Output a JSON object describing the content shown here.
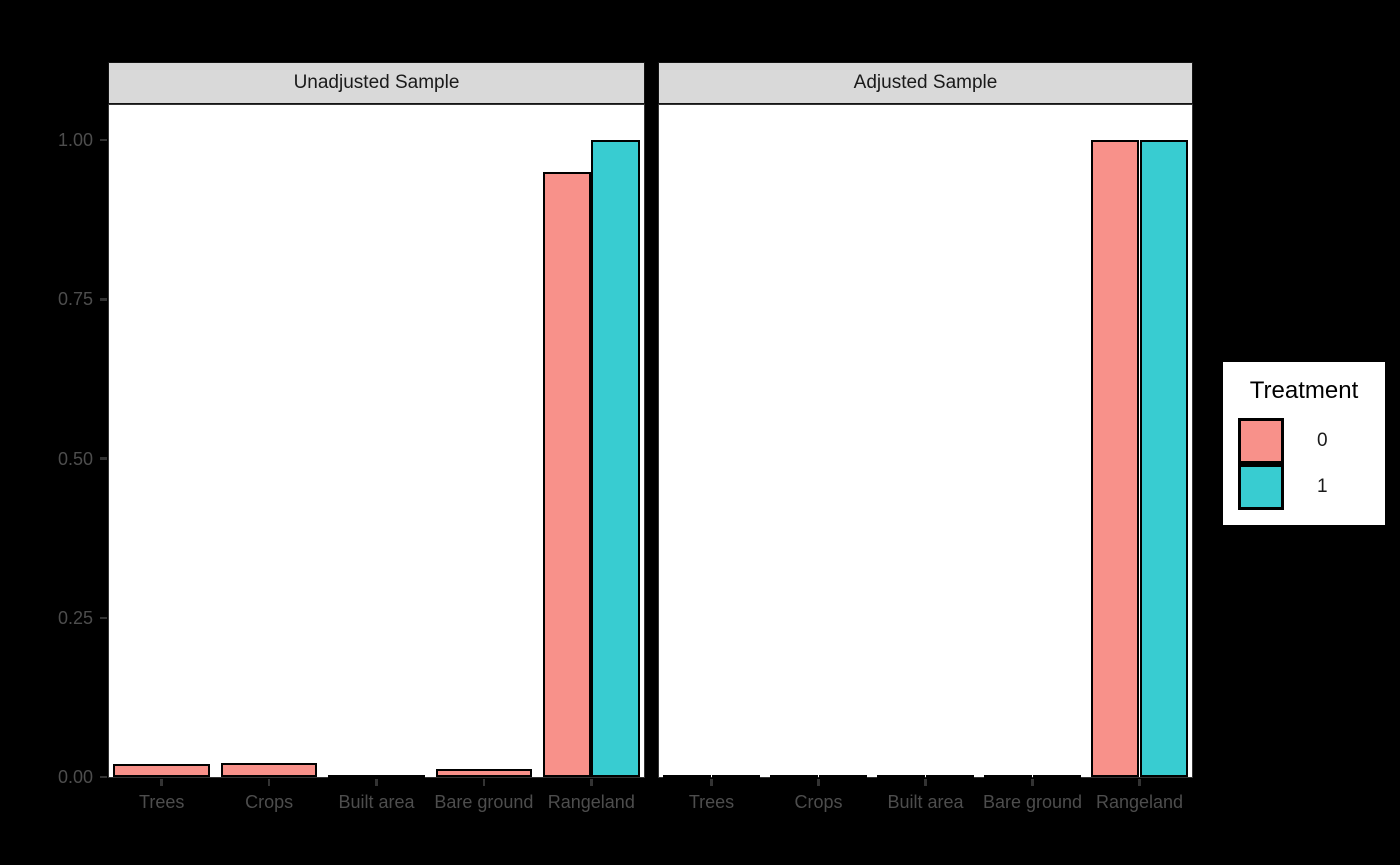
{
  "chart_data": {
    "type": "bar",
    "title": "",
    "xlabel": "",
    "ylabel": "",
    "ylim": [
      0,
      1
    ],
    "grid": false,
    "categories": [
      "Trees",
      "Crops",
      "Built area",
      "Bare ground",
      "Rangeland"
    ],
    "y_ticks": [
      "1.00",
      "0.75",
      "0.50",
      "0.25",
      "0.00"
    ],
    "facets": [
      {
        "label": "Unadjusted Sample",
        "series": [
          {
            "name": "0",
            "values": [
              0.02,
              0.022,
              0.002,
              0.012,
              0.95
            ]
          },
          {
            "name": "1",
            "values": [
              null,
              null,
              null,
              null,
              1.0
            ]
          }
        ]
      },
      {
        "label": "Adjusted Sample",
        "series": [
          {
            "name": "0",
            "values": [
              0.002,
              0.002,
              0.002,
              0.002,
              1.0
            ]
          },
          {
            "name": "1",
            "values": [
              0.002,
              0.002,
              0.002,
              0.002,
              1.0
            ]
          }
        ]
      }
    ],
    "legend": {
      "title": "Treatment",
      "position": "right",
      "entries": [
        {
          "label": "0",
          "color": "#F8918A"
        },
        {
          "label": "1",
          "color": "#38CCD1"
        }
      ]
    },
    "colors": {
      "treatment_0": "#F8918A",
      "treatment_1": "#38CCD1",
      "panel_background": "#ffffff",
      "strip_background": "#d9d9d9",
      "figure_background": "#000000",
      "axis_text": "#4d4d4d",
      "bar_border": "#000000"
    }
  }
}
